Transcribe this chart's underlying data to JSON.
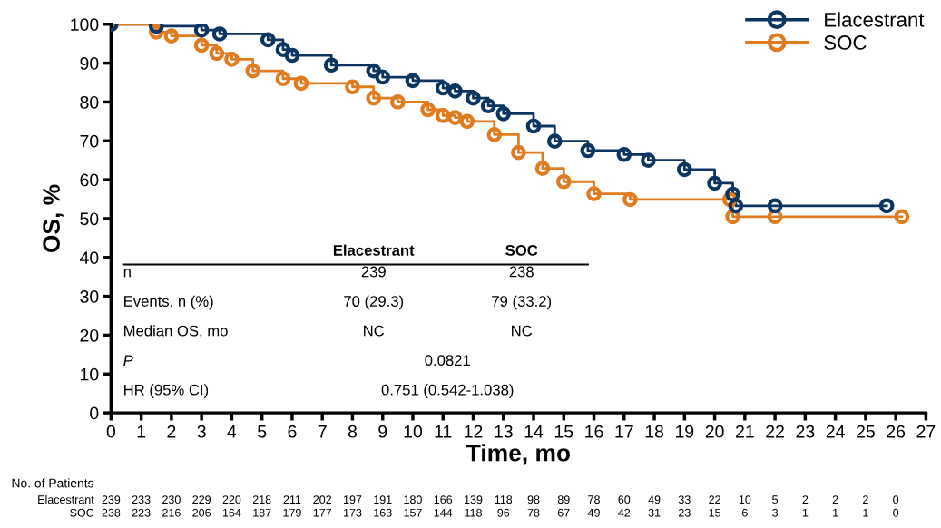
{
  "chart_data": {
    "type": "step",
    "xlabel": "Time, mo",
    "ylabel": "OS, %",
    "xlim": [
      0,
      27
    ],
    "xticks": [
      0,
      1,
      2,
      3,
      4,
      5,
      6,
      7,
      8,
      9,
      10,
      11,
      12,
      13,
      14,
      15,
      16,
      17,
      18,
      19,
      20,
      21,
      22,
      23,
      24,
      25,
      26,
      27
    ],
    "ylim": [
      0,
      100
    ],
    "yticks": [
      0,
      10,
      20,
      30,
      40,
      50,
      60,
      70,
      80,
      90,
      100
    ],
    "grid": false,
    "legend": "top right",
    "marker": "circle",
    "line_style": "solid",
    "series": [
      {
        "name": "Elacestrant",
        "color": "#0a3560",
        "x": [
          0,
          1.5,
          3,
          3.6,
          5.2,
          5.7,
          6,
          7.3,
          8.7,
          9,
          10,
          11,
          11.4,
          12,
          12.5,
          13,
          14,
          14.7,
          15.8,
          17,
          17.8,
          19,
          20,
          20.6,
          20.7,
          22,
          25.7
        ],
        "values": [
          100,
          99.5,
          98.5,
          97.5,
          96,
          93.5,
          92,
          89.5,
          88,
          86.4,
          85.5,
          83.6,
          82.8,
          81,
          79,
          77,
          73.8,
          69.9,
          67.5,
          66.5,
          65,
          62.6,
          59.1,
          56.3,
          53.3,
          53.3,
          53.3
        ]
      },
      {
        "name": "SOC",
        "color": "#e07b20",
        "x": [
          0,
          1.5,
          2,
          3,
          3.5,
          4,
          4.7,
          5.7,
          6.3,
          8,
          8.7,
          9.5,
          10.5,
          11,
          11.4,
          11.8,
          12.7,
          13.5,
          14.3,
          15,
          16,
          17.2,
          20.5,
          20.6,
          22,
          26.2
        ],
        "values": [
          100,
          98,
          97,
          94.6,
          92.5,
          91,
          88,
          86,
          84.8,
          83.9,
          81,
          80,
          78,
          76.5,
          76,
          75,
          71.6,
          67,
          62.9,
          59.5,
          56.4,
          54.9,
          54.9,
          50.5,
          50.5,
          50.5
        ]
      }
    ],
    "annotations": [
      "No. of Patients",
      "Elacestrant 239 233 230 229 220 218 211 202 197 191 180 166 139 118 98 89 78 60 49 33 22 10 5 2 2 2 0",
      "SOC 238 223 216 206 164 187 179 177 173 163 157 144 118 96 78 67 49 42 31 23 15 6 3 1 1 1 0",
      "\tElacestrant\tSOC",
      "n\t239\t238",
      "Events, n (%)\t70 (29.3)\t79 (33.2)",
      "Median OS, mo\tNC\tNC",
      "P\t0.0821",
      "HR (95% CI)\t0.751 (0.542-1.038)"
    ]
  }
}
